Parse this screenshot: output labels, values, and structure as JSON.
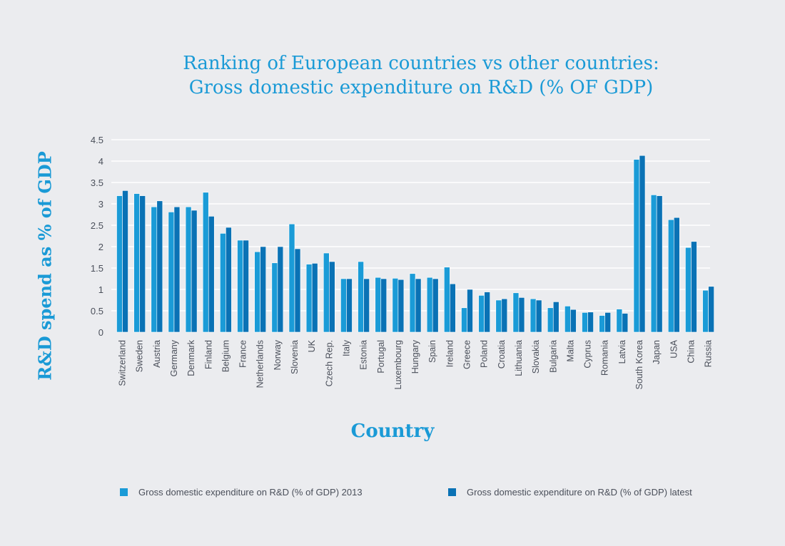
{
  "chart_data": {
    "type": "bar",
    "title": "Ranking of European countries vs other countries:\nGross domestic expenditure on R&D (% OF GDP)",
    "title_lines": [
      "Ranking of European countries vs other countries:",
      "Gross domestic expenditure on R&D (% OF GDP)"
    ],
    "xlabel": "Country",
    "ylabel": "R&D spend as % of GDP",
    "ylim": [
      0,
      4.5
    ],
    "yticks": [
      "0",
      "0.5",
      "1",
      "1.5",
      "2",
      "2.5",
      "3",
      "3.5",
      "4",
      "4.5"
    ],
    "grid": true,
    "legend_position": "bottom",
    "categories": [
      "Switzerland",
      "Sweden",
      "Austria",
      "Germany",
      "Denmark",
      "Finland",
      "Belgium",
      "France",
      "Netherlands",
      "Norway",
      "Slovenia",
      "UK",
      "Czech Rep.",
      "Italy",
      "Estonia",
      "Portugal",
      "Luxembourg",
      "Hungary",
      "Spain",
      "Ireland",
      "Greece",
      "Poland",
      "Croatia",
      "Lithuania",
      "Slovakia",
      "Bulgaria",
      "Malta",
      "Cyprus",
      "Romania",
      "Latvia",
      "South Korea",
      "Japan",
      "USA",
      "China",
      "Russia"
    ],
    "series": [
      {
        "name": "Gross domestic expenditure on R&D (% of GDP) 2013",
        "color": "#1a9bd7",
        "values": [
          3.19,
          3.24,
          2.93,
          2.81,
          2.93,
          3.27,
          2.31,
          2.15,
          1.88,
          1.62,
          2.53,
          1.59,
          1.85,
          1.25,
          1.65,
          1.28,
          1.26,
          1.37,
          1.28,
          1.52,
          0.57,
          0.86,
          0.75,
          0.92,
          0.78,
          0.57,
          0.61,
          0.46,
          0.39,
          0.54,
          4.04,
          3.21,
          2.63,
          1.98,
          0.98
        ]
      },
      {
        "name": "Gross domestic expenditure on R&D (% of GDP) latest",
        "color": "#0a72b5",
        "values": [
          3.31,
          3.19,
          3.07,
          2.93,
          2.85,
          2.71,
          2.45,
          2.15,
          2.0,
          2.0,
          1.95,
          1.61,
          1.65,
          1.25,
          1.25,
          1.25,
          1.23,
          1.25,
          1.25,
          1.13,
          1.0,
          0.94,
          0.78,
          0.81,
          0.75,
          0.71,
          0.53,
          0.47,
          0.46,
          0.44,
          4.13,
          3.19,
          2.68,
          2.12,
          1.07
        ]
      }
    ]
  }
}
